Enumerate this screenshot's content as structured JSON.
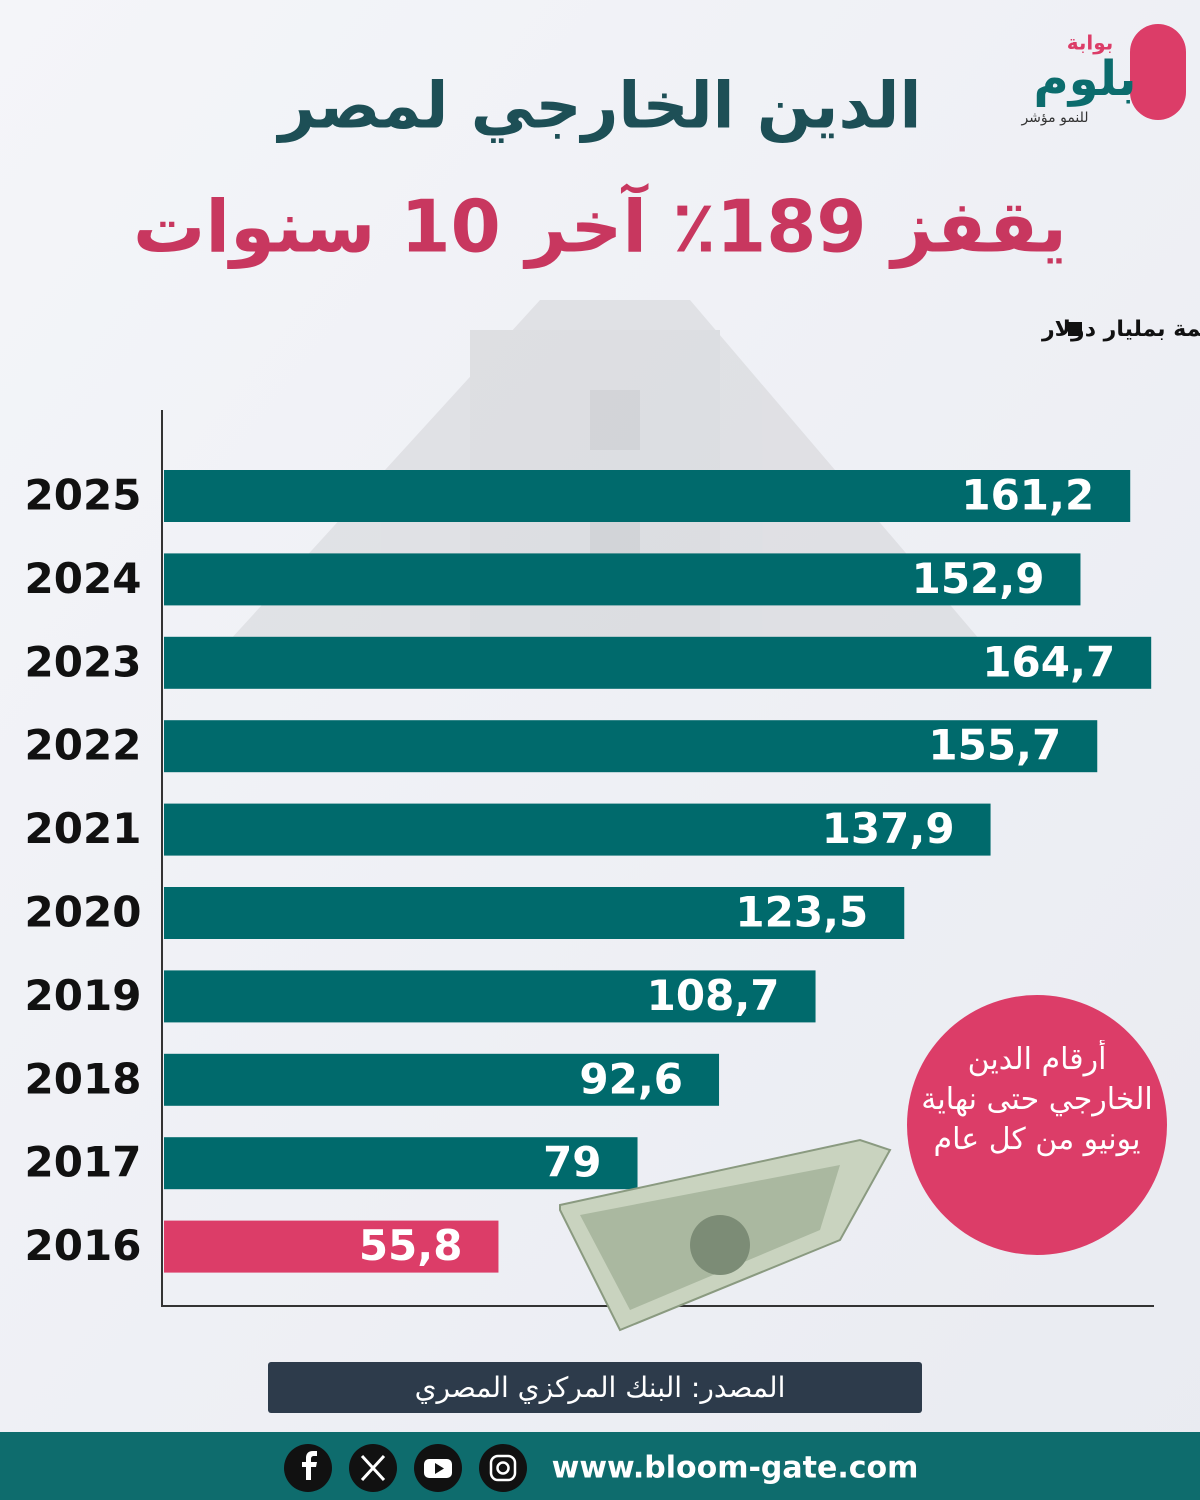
{
  "brand": {
    "top": "بوابة",
    "name": "بلوم",
    "tagline": "للنمو مؤشر"
  },
  "chart_data": {
    "type": "bar",
    "orientation": "horizontal",
    "title": "الدين الخارجي لمصر",
    "subtitle": "يقفز 189٪ آخر 10 سنوات",
    "legend": "القيمة بمليار دولار",
    "categories": [
      "2025",
      "2024",
      "2023",
      "2022",
      "2021",
      "2020",
      "2019",
      "2018",
      "2017",
      "2016"
    ],
    "values": [
      161.2,
      152.9,
      164.7,
      155.7,
      137.9,
      123.5,
      108.7,
      92.6,
      79,
      55.8
    ],
    "value_labels": [
      "161,2",
      "152,9",
      "164,7",
      "155,7",
      "137,9",
      "123,5",
      "108,7",
      "92,6",
      "79",
      "55,8"
    ],
    "colors": [
      "#006a6c",
      "#006a6c",
      "#006a6c",
      "#006a6c",
      "#006a6c",
      "#006a6c",
      "#006a6c",
      "#006a6c",
      "#006a6c",
      "#dc3d68"
    ],
    "xlim": [
      0,
      165
    ],
    "annotation": "أرقام الدين الخارجي حتى نهاية يونيو من كل عام",
    "source": "المصدر: البنك المركزي المصري"
  },
  "footer": {
    "website": "www.bloom-gate.com"
  }
}
